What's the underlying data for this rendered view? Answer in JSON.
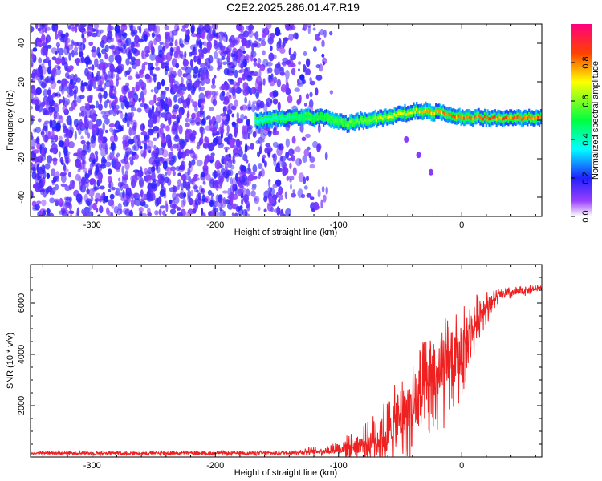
{
  "title": "C2E2.2025.286.01.47.R19",
  "charts": [
    {
      "type": "heatmap",
      "name": "spectrogram",
      "xlabel": "Height of straight line (km)",
      "ylabel": "Frequency (Hz)",
      "xlim": [
        -350,
        65
      ],
      "ylim": [
        -50,
        50
      ],
      "xticks": [
        -300,
        -200,
        -100,
        0
      ],
      "yticks": [
        -40,
        -20,
        0,
        20,
        40
      ],
      "colorbar": {
        "label": "Normalized spectral amplitude",
        "range": [
          0,
          1
        ],
        "ticks": [
          0.0,
          0.2,
          0.4,
          0.6,
          0.8
        ],
        "colormap": [
          "#ffffff",
          "#7a00ff",
          "#0000ff",
          "#00ffff",
          "#00ff00",
          "#ffff00",
          "#ff0000",
          "#ff0080"
        ]
      },
      "noise_region_x": [
        -350,
        -105
      ],
      "signal_band": {
        "x_start": -168,
        "x_end": 65,
        "center_hz": [
          {
            "x": -168,
            "f": 0
          },
          {
            "x": -150,
            "f": 1
          },
          {
            "x": -130,
            "f": 2
          },
          {
            "x": -110,
            "f": 1
          },
          {
            "x": -95,
            "f": -2
          },
          {
            "x": -80,
            "f": 0
          },
          {
            "x": -65,
            "f": 1
          },
          {
            "x": -50,
            "f": 3
          },
          {
            "x": -35,
            "f": 5
          },
          {
            "x": -20,
            "f": 4
          },
          {
            "x": 0,
            "f": 2
          },
          {
            "x": 20,
            "f": 1
          },
          {
            "x": 65,
            "f": 1
          }
        ],
        "width_hz": 4,
        "peak_amplitude": 0.95
      },
      "side_trail": [
        {
          "x": -45,
          "f": -10
        },
        {
          "x": -35,
          "f": -18
        },
        {
          "x": -25,
          "f": -27
        }
      ]
    },
    {
      "type": "line",
      "name": "snr",
      "xlabel": "Height of straight line (km)",
      "ylabel": "SNR (10 * v/v)",
      "xlim": [
        -350,
        65
      ],
      "ylim": [
        0,
        7500
      ],
      "xticks": [
        -300,
        -200,
        -100,
        0
      ],
      "yticks": [
        2000,
        4000,
        6000
      ],
      "color": "#ee2020",
      "envelope": [
        {
          "x": -350,
          "base": 150,
          "spread": 80
        },
        {
          "x": -150,
          "base": 150,
          "spread": 100
        },
        {
          "x": -110,
          "base": 250,
          "spread": 200
        },
        {
          "x": -80,
          "base": 500,
          "spread": 700
        },
        {
          "x": -60,
          "base": 900,
          "spread": 1500
        },
        {
          "x": -40,
          "base": 1900,
          "spread": 2000
        },
        {
          "x": -20,
          "base": 3000,
          "spread": 2400
        },
        {
          "x": 0,
          "base": 4000,
          "spread": 1800
        },
        {
          "x": 15,
          "base": 5600,
          "spread": 900
        },
        {
          "x": 30,
          "base": 6300,
          "spread": 300
        },
        {
          "x": 65,
          "base": 6600,
          "spread": 150
        }
      ]
    }
  ]
}
